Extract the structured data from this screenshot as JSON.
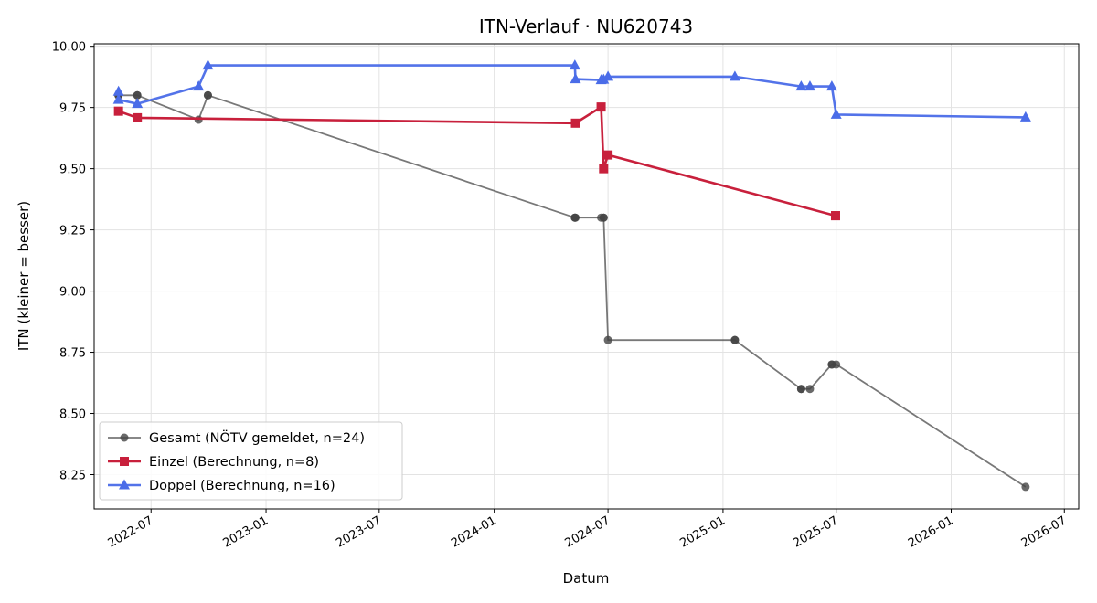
{
  "chart_data": {
    "type": "line",
    "title": "ITN-Verlauf · NU620743",
    "xlabel": "Datum",
    "ylabel": "ITN  (kleiner = besser)",
    "x_axis_type": "date",
    "xlim": [
      "2022-04-01",
      "2026-07-24"
    ],
    "ylim": [
      8.11,
      10.01
    ],
    "y_ticks": [
      8.25,
      8.5,
      8.75,
      9.0,
      9.25,
      9.5,
      9.75,
      10.0
    ],
    "y_tick_labels": [
      "8.25",
      "8.50",
      "8.75",
      "9.00",
      "9.25",
      "9.50",
      "9.75",
      "10.00"
    ],
    "x_ticks": [
      "2022-07-01",
      "2023-01-01",
      "2023-07-01",
      "2024-01-01",
      "2024-07-01",
      "2025-01-01",
      "2025-07-01",
      "2026-01-01",
      "2026-07-01"
    ],
    "x_tick_labels": [
      "2022-07",
      "2023-01",
      "2023-07",
      "2024-01",
      "2024-07",
      "2025-01",
      "2025-07",
      "2026-01",
      "2026-07"
    ],
    "grid": true,
    "legend_position": "lower-left",
    "series": [
      {
        "name": "Gesamt (NÖTV gemeldet, n=24)",
        "color": "#444444",
        "marker": "circle",
        "x": [
          "2022-05-10",
          "2022-05-10",
          "2022-05-10",
          "2022-06-09",
          "2022-06-09",
          "2022-09-15",
          "2022-09-30",
          "2022-09-30",
          "2024-05-09",
          "2024-05-09",
          "2024-05-10",
          "2024-06-20",
          "2024-06-24",
          "2024-06-24",
          "2024-07-01",
          "2025-01-20",
          "2025-01-20",
          "2025-05-06",
          "2025-05-06",
          "2025-05-20",
          "2025-06-24",
          "2025-06-24",
          "2025-07-01",
          "2026-04-30"
        ],
        "y": [
          9.8,
          9.8,
          9.8,
          9.8,
          9.8,
          9.7,
          9.8,
          9.8,
          9.3,
          9.3,
          9.3,
          9.3,
          9.3,
          9.3,
          8.8,
          8.8,
          8.8,
          8.6,
          8.6,
          8.6,
          8.7,
          8.7,
          8.7,
          8.2
        ]
      },
      {
        "name": "Einzel (Berechnung, n=8)",
        "color": "#c8203c",
        "marker": "square",
        "x": [
          "2022-05-10",
          "2022-06-09",
          "2024-05-10",
          "2024-06-20",
          "2024-06-24",
          "2024-07-01",
          "2025-06-30",
          "2025-06-30"
        ],
        "y": [
          9.735,
          9.708,
          9.686,
          9.752,
          9.5,
          9.556,
          9.308,
          9.308
        ]
      },
      {
        "name": "Doppel (Berechnung, n=16)",
        "color": "#4a6ce8",
        "marker": "triangle",
        "x": [
          "2022-05-10",
          "2022-05-10",
          "2022-06-09",
          "2022-09-15",
          "2022-09-30",
          "2024-05-09",
          "2024-05-10",
          "2024-06-20",
          "2024-06-24",
          "2024-07-01",
          "2025-01-20",
          "2025-05-06",
          "2025-05-20",
          "2025-06-24",
          "2025-07-01",
          "2026-04-30"
        ],
        "y": [
          9.815,
          9.782,
          9.765,
          9.836,
          9.922,
          9.922,
          9.866,
          9.862,
          9.864,
          9.876,
          9.876,
          9.836,
          9.836,
          9.836,
          9.721,
          9.71
        ]
      }
    ]
  }
}
